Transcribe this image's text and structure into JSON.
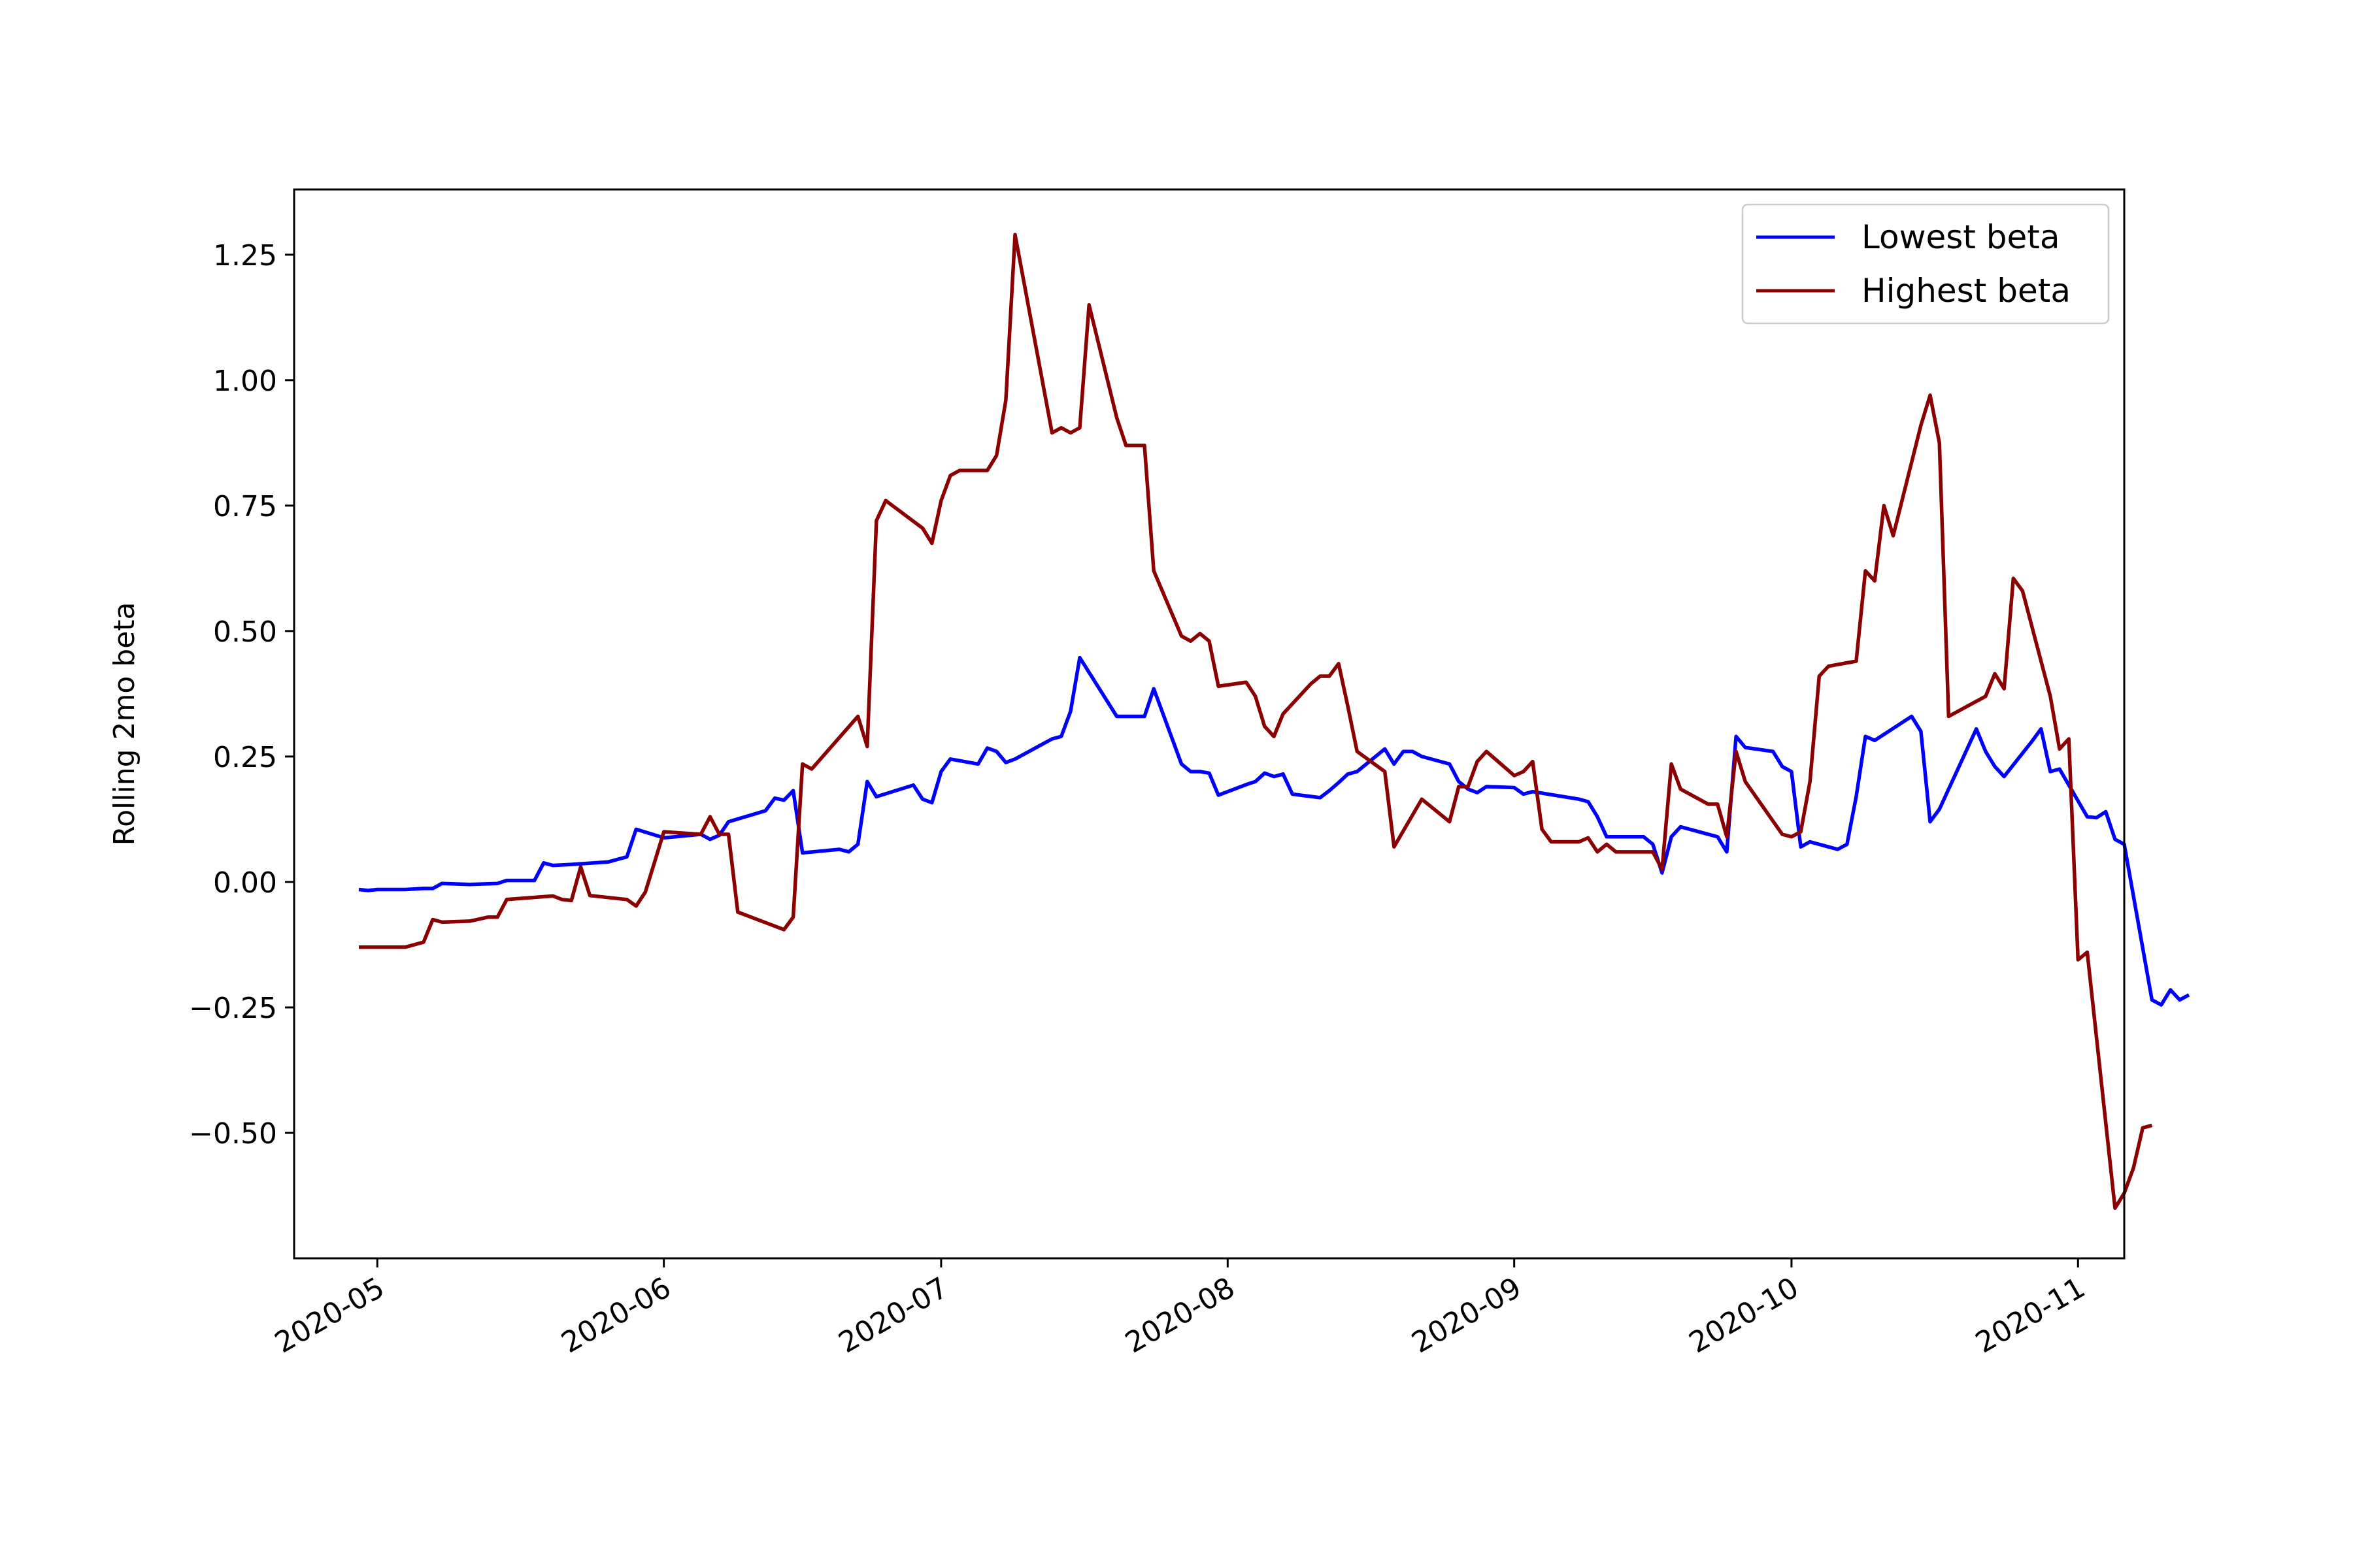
{
  "chart_data": {
    "type": "line",
    "title": "",
    "xlabel": "",
    "ylabel": "Rolling 2mo beta",
    "xlim": [
      "2020-04-22",
      "2020-11-06"
    ],
    "ylim": [
      -0.75,
      1.38
    ],
    "x_ticks": [
      "2020-05-01",
      "2020-06-01",
      "2020-07-01",
      "2020-08-01",
      "2020-09-01",
      "2020-10-01",
      "2020-11-01"
    ],
    "x_tick_labels": [
      "2020-05",
      "2020-06",
      "2020-07",
      "2020-08",
      "2020-09",
      "2020-10",
      "2020-11"
    ],
    "y_ticks": [
      -0.5,
      -0.25,
      0.0,
      0.25,
      0.5,
      0.75,
      1.0,
      1.25
    ],
    "y_tick_labels": [
      "−0.50",
      "−0.25",
      "0.00",
      "0.25",
      "0.50",
      "0.75",
      "1.00",
      "1.25"
    ],
    "grid": false,
    "legend_position": "top-right",
    "series": [
      {
        "name": "Lowest beta",
        "color": "#0000ff",
        "points": [
          [
            "2020-04-29",
            -0.015
          ],
          [
            "2020-04-30",
            -0.017
          ],
          [
            "2020-05-01",
            -0.015
          ],
          [
            "2020-05-04",
            -0.015
          ],
          [
            "2020-05-06",
            -0.013
          ],
          [
            "2020-05-07",
            -0.013
          ],
          [
            "2020-05-08",
            -0.003
          ],
          [
            "2020-05-11",
            -0.005
          ],
          [
            "2020-05-14",
            -0.003
          ],
          [
            "2020-05-15",
            0.003
          ],
          [
            "2020-05-18",
            0.003
          ],
          [
            "2020-05-19",
            0.038
          ],
          [
            "2020-05-20",
            0.033
          ],
          [
            "2020-05-22",
            0.035
          ],
          [
            "2020-05-26",
            0.04
          ],
          [
            "2020-05-28",
            0.05
          ],
          [
            "2020-05-29",
            0.105
          ],
          [
            "2020-06-01",
            0.088
          ],
          [
            "2020-06-05",
            0.095
          ],
          [
            "2020-06-06",
            0.085
          ],
          [
            "2020-06-07",
            0.093
          ],
          [
            "2020-06-08",
            0.12
          ],
          [
            "2020-06-12",
            0.142
          ],
          [
            "2020-06-13",
            0.167
          ],
          [
            "2020-06-14",
            0.163
          ],
          [
            "2020-06-15",
            0.182
          ],
          [
            "2020-06-16",
            0.058
          ],
          [
            "2020-06-20",
            0.065
          ],
          [
            "2020-06-21",
            0.06
          ],
          [
            "2020-06-22",
            0.075
          ],
          [
            "2020-06-23",
            0.2
          ],
          [
            "2020-06-24",
            0.17
          ],
          [
            "2020-06-28",
            0.193
          ],
          [
            "2020-06-29",
            0.165
          ],
          [
            "2020-06-30",
            0.158
          ],
          [
            "2020-07-01",
            0.22
          ],
          [
            "2020-07-02",
            0.245
          ],
          [
            "2020-07-05",
            0.235
          ],
          [
            "2020-07-06",
            0.267
          ],
          [
            "2020-07-07",
            0.26
          ],
          [
            "2020-07-08",
            0.238
          ],
          [
            "2020-07-09",
            0.245
          ],
          [
            "2020-07-13",
            0.285
          ],
          [
            "2020-07-14",
            0.29
          ],
          [
            "2020-07-15",
            0.34
          ],
          [
            "2020-07-16",
            0.447
          ],
          [
            "2020-07-20",
            0.33
          ],
          [
            "2020-07-21",
            0.33
          ],
          [
            "2020-07-23",
            0.33
          ],
          [
            "2020-07-24",
            0.385
          ],
          [
            "2020-07-27",
            0.235
          ],
          [
            "2020-07-28",
            0.22
          ],
          [
            "2020-07-29",
            0.22
          ],
          [
            "2020-07-30",
            0.217
          ],
          [
            "2020-07-31",
            0.173
          ],
          [
            "2020-08-03",
            0.194
          ],
          [
            "2020-08-04",
            0.2
          ],
          [
            "2020-08-05",
            0.217
          ],
          [
            "2020-08-06",
            0.21
          ],
          [
            "2020-08-07",
            0.215
          ],
          [
            "2020-08-08",
            0.175
          ],
          [
            "2020-08-11",
            0.168
          ],
          [
            "2020-08-12",
            0.182
          ],
          [
            "2020-08-13",
            0.198
          ],
          [
            "2020-08-14",
            0.215
          ],
          [
            "2020-08-15",
            0.22
          ],
          [
            "2020-08-18",
            0.265
          ],
          [
            "2020-08-19",
            0.235
          ],
          [
            "2020-08-20",
            0.26
          ],
          [
            "2020-08-21",
            0.26
          ],
          [
            "2020-08-22",
            0.25
          ],
          [
            "2020-08-25",
            0.235
          ],
          [
            "2020-08-26",
            0.2
          ],
          [
            "2020-08-27",
            0.185
          ],
          [
            "2020-08-28",
            0.178
          ],
          [
            "2020-08-29",
            0.19
          ],
          [
            "2020-09-01",
            0.188
          ],
          [
            "2020-09-02",
            0.175
          ],
          [
            "2020-09-03",
            0.18
          ],
          [
            "2020-09-08",
            0.165
          ],
          [
            "2020-09-09",
            0.16
          ],
          [
            "2020-09-10",
            0.13
          ],
          [
            "2020-09-11",
            0.09
          ],
          [
            "2020-09-15",
            0.09
          ],
          [
            "2020-09-16",
            0.075
          ],
          [
            "2020-09-17",
            0.018
          ],
          [
            "2020-09-18",
            0.09
          ],
          [
            "2020-09-19",
            0.11
          ],
          [
            "2020-09-23",
            0.09
          ],
          [
            "2020-09-24",
            0.06
          ],
          [
            "2020-09-25",
            0.29
          ],
          [
            "2020-09-26",
            0.268
          ],
          [
            "2020-09-29",
            0.26
          ],
          [
            "2020-09-30",
            0.23
          ],
          [
            "2020-10-01",
            0.22
          ],
          [
            "2020-10-02",
            0.07
          ],
          [
            "2020-10-03",
            0.08
          ],
          [
            "2020-10-06",
            0.065
          ],
          [
            "2020-10-07",
            0.075
          ],
          [
            "2020-10-08",
            0.17
          ],
          [
            "2020-10-09",
            0.29
          ],
          [
            "2020-10-10",
            0.282
          ],
          [
            "2020-10-14",
            0.33
          ],
          [
            "2020-10-15",
            0.3
          ],
          [
            "2020-10-16",
            0.12
          ],
          [
            "2020-10-17",
            0.145
          ],
          [
            "2020-10-21",
            0.305
          ],
          [
            "2020-10-22",
            0.26
          ],
          [
            "2020-10-23",
            0.23
          ],
          [
            "2020-10-24",
            0.21
          ],
          [
            "2020-10-27",
            0.28
          ],
          [
            "2020-10-28",
            0.305
          ],
          [
            "2020-10-29",
            0.22
          ],
          [
            "2020-10-30",
            0.225
          ],
          [
            "2020-11-02",
            0.13
          ],
          [
            "2020-11-03",
            0.128
          ],
          [
            "2020-11-04",
            0.14
          ],
          [
            "2020-11-05",
            0.085
          ],
          [
            "2020-11-06",
            0.075
          ],
          [
            "2020-11-09",
            -0.235
          ],
          [
            "2020-11-10",
            -0.245
          ],
          [
            "2020-11-11",
            -0.215
          ],
          [
            "2020-11-12",
            -0.235
          ],
          [
            "2020-11-13",
            -0.225
          ]
        ]
      },
      {
        "name": "Highest beta",
        "color": "#8b0000",
        "points": [
          [
            "2020-04-29",
            -0.13
          ],
          [
            "2020-04-30",
            -0.13
          ],
          [
            "2020-05-01",
            -0.13
          ],
          [
            "2020-05-04",
            -0.13
          ],
          [
            "2020-05-06",
            -0.12
          ],
          [
            "2020-05-07",
            -0.075
          ],
          [
            "2020-05-08",
            -0.08
          ],
          [
            "2020-05-11",
            -0.078
          ],
          [
            "2020-05-13",
            -0.07
          ],
          [
            "2020-05-14",
            -0.07
          ],
          [
            "2020-05-15",
            -0.035
          ],
          [
            "2020-05-20",
            -0.028
          ],
          [
            "2020-05-21",
            -0.035
          ],
          [
            "2020-05-22",
            -0.037
          ],
          [
            "2020-05-23",
            0.03
          ],
          [
            "2020-05-24",
            -0.027
          ],
          [
            "2020-05-28",
            -0.035
          ],
          [
            "2020-05-29",
            -0.048
          ],
          [
            "2020-05-30",
            -0.02
          ],
          [
            "2020-06-01",
            0.1
          ],
          [
            "2020-06-05",
            0.095
          ],
          [
            "2020-06-06",
            0.13
          ],
          [
            "2020-06-07",
            0.095
          ],
          [
            "2020-06-08",
            0.095
          ],
          [
            "2020-06-09",
            -0.06
          ],
          [
            "2020-06-14",
            -0.095
          ],
          [
            "2020-06-15",
            -0.07
          ],
          [
            "2020-06-16",
            0.235
          ],
          [
            "2020-06-17",
            0.225
          ],
          [
            "2020-06-22",
            0.33
          ],
          [
            "2020-06-23",
            0.27
          ],
          [
            "2020-06-24",
            0.72
          ],
          [
            "2020-06-25",
            0.76
          ],
          [
            "2020-06-29",
            0.705
          ],
          [
            "2020-06-30",
            0.675
          ],
          [
            "2020-07-01",
            0.76
          ],
          [
            "2020-07-02",
            0.81
          ],
          [
            "2020-07-03",
            0.82
          ],
          [
            "2020-07-06",
            0.82
          ],
          [
            "2020-07-07",
            0.85
          ],
          [
            "2020-07-08",
            0.96
          ],
          [
            "2020-07-09",
            1.29
          ],
          [
            "2020-07-13",
            0.895
          ],
          [
            "2020-07-14",
            0.905
          ],
          [
            "2020-07-15",
            0.895
          ],
          [
            "2020-07-16",
            0.905
          ],
          [
            "2020-07-17",
            1.15
          ],
          [
            "2020-07-20",
            0.925
          ],
          [
            "2020-07-21",
            0.87
          ],
          [
            "2020-07-22",
            0.87
          ],
          [
            "2020-07-23",
            0.87
          ],
          [
            "2020-07-24",
            0.62
          ],
          [
            "2020-07-27",
            0.49
          ],
          [
            "2020-07-28",
            0.48
          ],
          [
            "2020-07-29",
            0.495
          ],
          [
            "2020-07-30",
            0.48
          ],
          [
            "2020-07-31",
            0.39
          ],
          [
            "2020-08-03",
            0.398
          ],
          [
            "2020-08-04",
            0.37
          ],
          [
            "2020-08-05",
            0.31
          ],
          [
            "2020-08-06",
            0.29
          ],
          [
            "2020-08-07",
            0.335
          ],
          [
            "2020-08-10",
            0.395
          ],
          [
            "2020-08-11",
            0.41
          ],
          [
            "2020-08-12",
            0.41
          ],
          [
            "2020-08-13",
            0.435
          ],
          [
            "2020-08-14",
            0.35
          ],
          [
            "2020-08-15",
            0.26
          ],
          [
            "2020-08-18",
            0.22
          ],
          [
            "2020-08-19",
            0.07
          ],
          [
            "2020-08-22",
            0.165
          ],
          [
            "2020-08-25",
            0.12
          ],
          [
            "2020-08-26",
            0.19
          ],
          [
            "2020-08-27",
            0.19
          ],
          [
            "2020-08-28",
            0.24
          ],
          [
            "2020-08-29",
            0.26
          ],
          [
            "2020-09-01",
            0.212
          ],
          [
            "2020-09-02",
            0.22
          ],
          [
            "2020-09-03",
            0.24
          ],
          [
            "2020-09-04",
            0.105
          ],
          [
            "2020-09-05",
            0.08
          ],
          [
            "2020-09-08",
            0.08
          ],
          [
            "2020-09-09",
            0.088
          ],
          [
            "2020-09-10",
            0.06
          ],
          [
            "2020-09-11",
            0.075
          ],
          [
            "2020-09-12",
            0.06
          ],
          [
            "2020-09-16",
            0.06
          ],
          [
            "2020-09-17",
            0.025
          ],
          [
            "2020-09-18",
            0.235
          ],
          [
            "2020-09-19",
            0.185
          ],
          [
            "2020-09-22",
            0.155
          ],
          [
            "2020-09-23",
            0.155
          ],
          [
            "2020-09-24",
            0.09
          ],
          [
            "2020-09-25",
            0.26
          ],
          [
            "2020-09-26",
            0.2
          ],
          [
            "2020-09-30",
            0.095
          ],
          [
            "2020-10-01",
            0.09
          ],
          [
            "2020-10-02",
            0.1
          ],
          [
            "2020-10-03",
            0.2
          ],
          [
            "2020-10-04",
            0.41
          ],
          [
            "2020-10-05",
            0.43
          ],
          [
            "2020-10-08",
            0.44
          ],
          [
            "2020-10-09",
            0.62
          ],
          [
            "2020-10-10",
            0.6
          ],
          [
            "2020-10-11",
            0.75
          ],
          [
            "2020-10-12",
            0.69
          ],
          [
            "2020-10-15",
            0.91
          ],
          [
            "2020-10-16",
            0.97
          ],
          [
            "2020-10-17",
            0.875
          ],
          [
            "2020-10-18",
            0.33
          ],
          [
            "2020-10-21",
            0.36
          ],
          [
            "2020-10-22",
            0.37
          ],
          [
            "2020-10-23",
            0.415
          ],
          [
            "2020-10-24",
            0.385
          ],
          [
            "2020-10-25",
            0.605
          ],
          [
            "2020-10-26",
            0.58
          ],
          [
            "2020-10-29",
            0.37
          ],
          [
            "2020-10-30",
            0.265
          ],
          [
            "2020-10-31",
            0.285
          ],
          [
            "2020-11-01",
            -0.155
          ],
          [
            "2020-11-02",
            -0.14
          ],
          [
            "2020-11-05",
            -0.65
          ],
          [
            "2020-11-06",
            -0.62
          ],
          [
            "2020-11-07",
            -0.57
          ],
          [
            "2020-11-08",
            -0.49
          ],
          [
            "2020-11-09",
            -0.485
          ]
        ]
      }
    ]
  }
}
